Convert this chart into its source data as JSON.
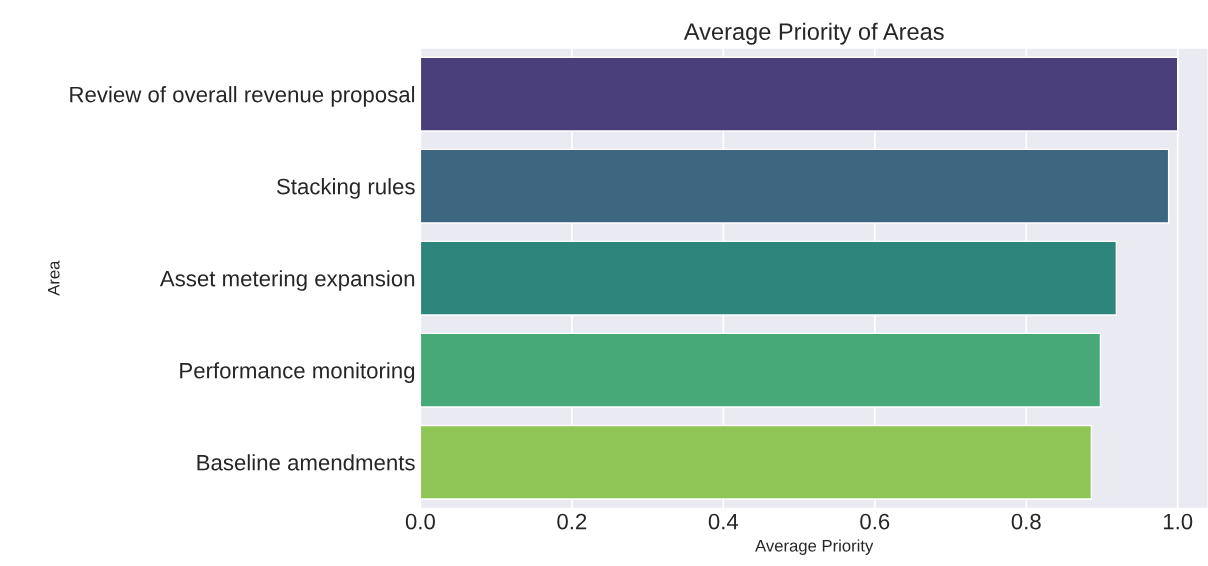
{
  "chart_data": {
    "type": "bar",
    "orientation": "horizontal",
    "title": "Average Priority of Areas",
    "xlabel": "Average Priority",
    "ylabel": "Area",
    "categories": [
      "Review of overall revenue proposal",
      "Stacking rules",
      "Asset metering expansion",
      "Performance monitoring",
      "Baseline amendments"
    ],
    "values": [
      1.0,
      0.988,
      0.919,
      0.898,
      0.886
    ],
    "colors": [
      "#4a3f7a",
      "#3d6681",
      "#2e857c",
      "#47a878",
      "#8fc556"
    ],
    "xlim": [
      0,
      1.04
    ],
    "xticks": [
      {
        "value": 0,
        "label": "0.0"
      },
      {
        "value": 0.2,
        "label": "0.2"
      },
      {
        "value": 0.4,
        "label": "0.4"
      },
      {
        "value": 0.6,
        "label": "0.6"
      },
      {
        "value": 0.8,
        "label": "0.8"
      },
      {
        "value": 1.0,
        "label": "1.0"
      }
    ],
    "grid": "x"
  }
}
